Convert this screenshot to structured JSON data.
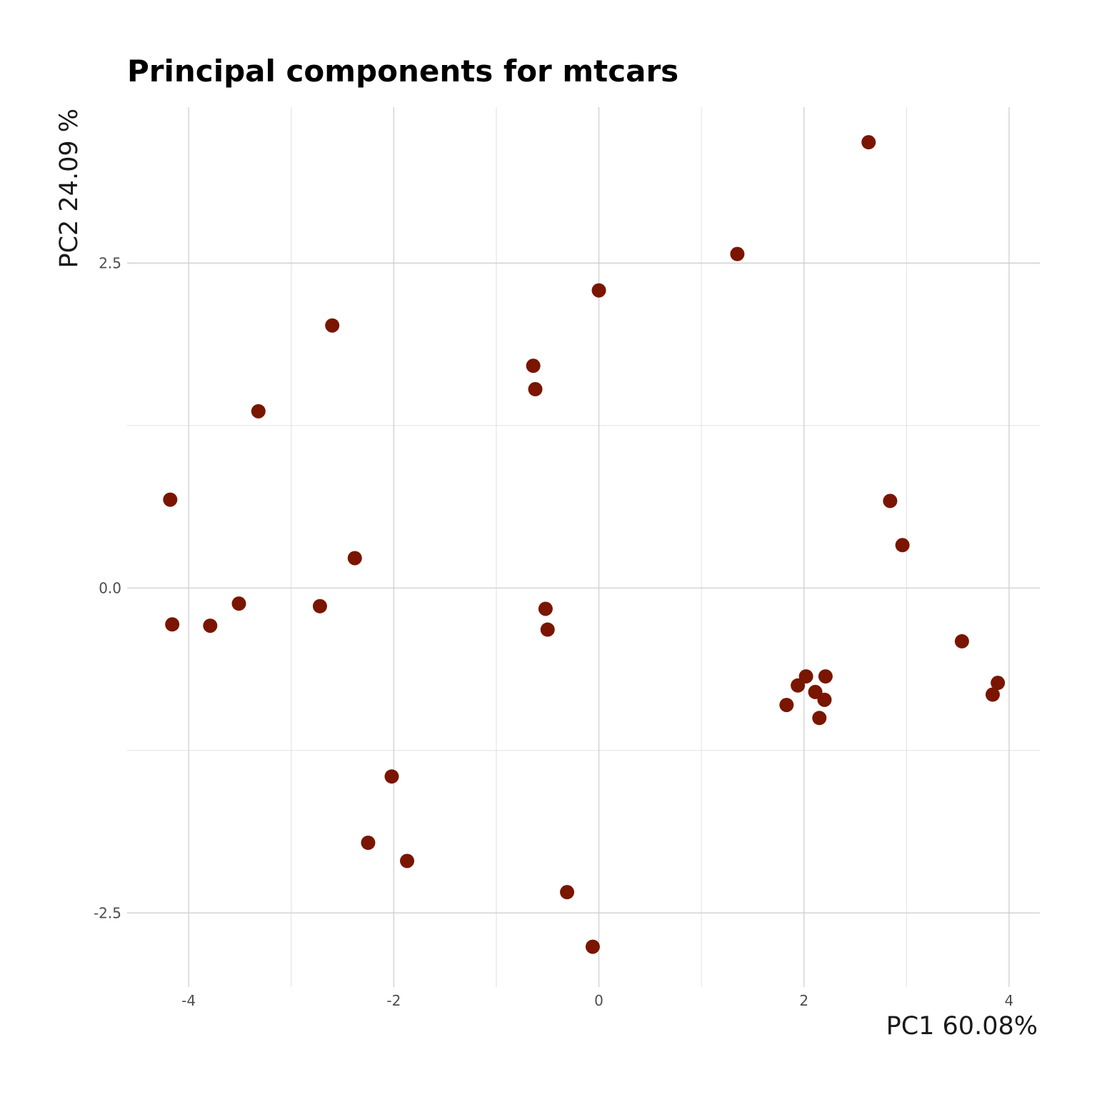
{
  "chart_data": {
    "type": "scatter",
    "title": "Principal components for mtcars",
    "xlabel": "PC1 60.08%",
    "ylabel": "PC2 24.09 %",
    "xlim": [
      -4.6,
      4.3
    ],
    "ylim": [
      -3.07,
      3.7
    ],
    "x_ticks": [
      -4,
      -2,
      0,
      2,
      4
    ],
    "x_tick_labels": [
      "-4",
      "-2",
      "0",
      "2",
      "4"
    ],
    "y_ticks": [
      -2.5,
      0,
      2.5
    ],
    "y_tick_labels": [
      "-2.5",
      "0.0",
      "2.5"
    ],
    "grid": true,
    "point_color": "#7A1500",
    "points": [
      {
        "x": 2.63,
        "y": 3.43
      },
      {
        "x": 1.35,
        "y": 2.57
      },
      {
        "x": 0.0,
        "y": 2.29
      },
      {
        "x": -2.6,
        "y": 2.02
      },
      {
        "x": -0.64,
        "y": 1.71
      },
      {
        "x": -0.62,
        "y": 1.53
      },
      {
        "x": -3.32,
        "y": 1.36
      },
      {
        "x": -4.18,
        "y": 0.68
      },
      {
        "x": 2.84,
        "y": 0.67
      },
      {
        "x": -2.38,
        "y": 0.23
      },
      {
        "x": 2.96,
        "y": 0.33
      },
      {
        "x": -3.51,
        "y": -0.12
      },
      {
        "x": -2.72,
        "y": -0.14
      },
      {
        "x": -0.52,
        "y": -0.16
      },
      {
        "x": -4.16,
        "y": -0.28
      },
      {
        "x": -3.79,
        "y": -0.29
      },
      {
        "x": -0.5,
        "y": -0.32
      },
      {
        "x": 3.54,
        "y": -0.41
      },
      {
        "x": 2.02,
        "y": -0.68
      },
      {
        "x": 2.21,
        "y": -0.68
      },
      {
        "x": 1.94,
        "y": -0.75
      },
      {
        "x": 2.11,
        "y": -0.8
      },
      {
        "x": 3.89,
        "y": -0.73
      },
      {
        "x": 3.84,
        "y": -0.82
      },
      {
        "x": 2.2,
        "y": -0.86
      },
      {
        "x": 1.83,
        "y": -0.9
      },
      {
        "x": 2.15,
        "y": -1.0
      },
      {
        "x": -2.02,
        "y": -1.45
      },
      {
        "x": -2.25,
        "y": -1.96
      },
      {
        "x": -1.87,
        "y": -2.1
      },
      {
        "x": -0.31,
        "y": -2.34
      },
      {
        "x": -0.06,
        "y": -2.76
      }
    ]
  }
}
